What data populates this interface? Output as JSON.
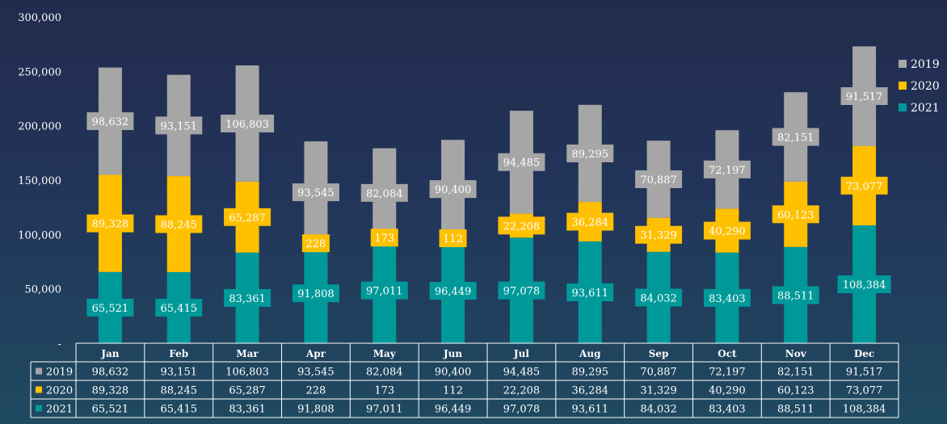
{
  "chart_data": {
    "type": "bar",
    "stacked": true,
    "categories": [
      "Jan",
      "Feb",
      "Mar",
      "Apr",
      "May",
      "Jun",
      "Jul",
      "Aug",
      "Sep",
      "Oct",
      "Nov",
      "Dec"
    ],
    "series": [
      {
        "name": "2021",
        "color": "#00999a",
        "values": [
          65521,
          65415,
          83361,
          91808,
          97011,
          96449,
          97078,
          93611,
          84032,
          83403,
          88511,
          108384
        ],
        "labels": [
          "65,521",
          "65,415",
          "83,361",
          "91,808",
          "97,011",
          "96,449",
          "97,078",
          "93,611",
          "84,032",
          "83,403",
          "88,511",
          "108,384"
        ]
      },
      {
        "name": "2020",
        "color": "#ffc000",
        "values": [
          89328,
          88245,
          65287,
          228,
          173,
          112,
          22208,
          36284,
          31329,
          40290,
          60123,
          73077
        ],
        "labels": [
          "89,328",
          "88,245",
          "65,287",
          "228",
          "173",
          "112",
          "22,208",
          "36,284",
          "31,329",
          "40,290",
          "60,123",
          "73,077"
        ]
      },
      {
        "name": "2019",
        "color": "#a6a6a6",
        "values": [
          98632,
          93151,
          106803,
          93545,
          82084,
          90400,
          94485,
          89295,
          70887,
          72197,
          82151,
          91517
        ],
        "labels": [
          "98,632",
          "93,151",
          "106,803",
          "93,545",
          "82,084",
          "90,400",
          "94,485",
          "89,295",
          "70,887",
          "72,197",
          "82,151",
          "91,517"
        ]
      }
    ],
    "ylim": [
      0,
      300000
    ],
    "yticks": [
      0,
      50000,
      100000,
      150000,
      200000,
      250000,
      300000
    ],
    "ytick_labels": [
      "-",
      "50,000",
      "100,000",
      "150,000",
      "200,000",
      "250,000",
      "300,000"
    ],
    "legend_position": "right",
    "legend_order": [
      "2019",
      "2020",
      "2021"
    ],
    "data_table": true,
    "table_row_order": [
      "2019",
      "2020",
      "2021"
    ]
  }
}
